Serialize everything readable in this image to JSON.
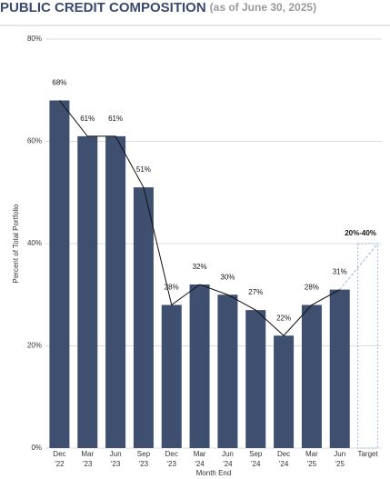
{
  "chart_data": {
    "type": "bar",
    "title": "PUBLIC CREDIT COMPOSITION",
    "subtitle": "(as of June 30, 2025)",
    "y_label": "Percent of Total Portfolio",
    "x_label": "Month End",
    "categories": [
      "Dec '22",
      "Mar '23",
      "Jun '23",
      "Sep '23",
      "Dec '23",
      "Mar '24",
      "Jun '24",
      "Sep '24",
      "Dec '24",
      "Mar '25",
      "Jun '25",
      "Target"
    ],
    "values": [
      68,
      61,
      61,
      51,
      28,
      32,
      30,
      27,
      22,
      28,
      31,
      null
    ],
    "value_labels": [
      "68%",
      "61%",
      "61%",
      "51%",
      "28%",
      "32%",
      "30%",
      "27%",
      "22%",
      "28%",
      "31%",
      null
    ],
    "color": "#3f4f6f",
    "line_color": "#111111",
    "target": {
      "range": [
        20,
        40
      ],
      "label": "20%-40%",
      "color": "#9bb7dd"
    },
    "ylim": [
      0,
      80
    ],
    "yticks": [
      {
        "value": 0,
        "label": "0%"
      },
      {
        "value": 20,
        "label": "20%"
      },
      {
        "value": 40,
        "label": "40%"
      },
      {
        "value": 60,
        "label": "60%"
      },
      {
        "value": 80,
        "label": "80%"
      }
    ],
    "grid": true
  }
}
